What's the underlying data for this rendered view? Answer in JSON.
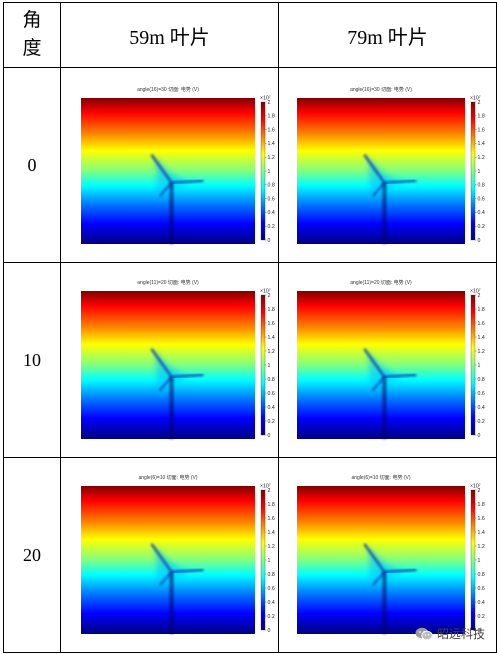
{
  "table": {
    "header": {
      "angle_label": "角\n度",
      "col1": "59m 叶片",
      "col2": "79m 叶片"
    },
    "rows": [
      {
        "label": "0",
        "left": {
          "title": "angle(16)=30   切面: 电势 (V)"
        },
        "right": {
          "title": "angle(16)=30   切面: 电势 (V)"
        }
      },
      {
        "label": "10",
        "left": {
          "title": "angle(11)=20   切面: 电势 (V)"
        },
        "right": {
          "title": "angle(11)=20   切面: 电势 (V)"
        }
      },
      {
        "label": "20",
        "left": {
          "title": "angle(6)=10   切面: 电势 (V)"
        },
        "right": {
          "title": "angle(6)=10   切面: 电势 (V)"
        }
      }
    ]
  },
  "colorbar": {
    "exponent": "×10⁷",
    "ticks": [
      "2",
      "1.8",
      "1.6",
      "1.4",
      "1.2",
      "1",
      "0.8",
      "0.6",
      "0.4",
      "0.2",
      "0"
    ],
    "stops": [
      "#800000",
      "#ff0000",
      "#ff8000",
      "#ffff00",
      "#80ff80",
      "#00ffff",
      "#0080ff",
      "#0000ff",
      "#000080"
    ]
  },
  "watermark": {
    "text": "昭远科技",
    "icon": "wechat-icon"
  }
}
